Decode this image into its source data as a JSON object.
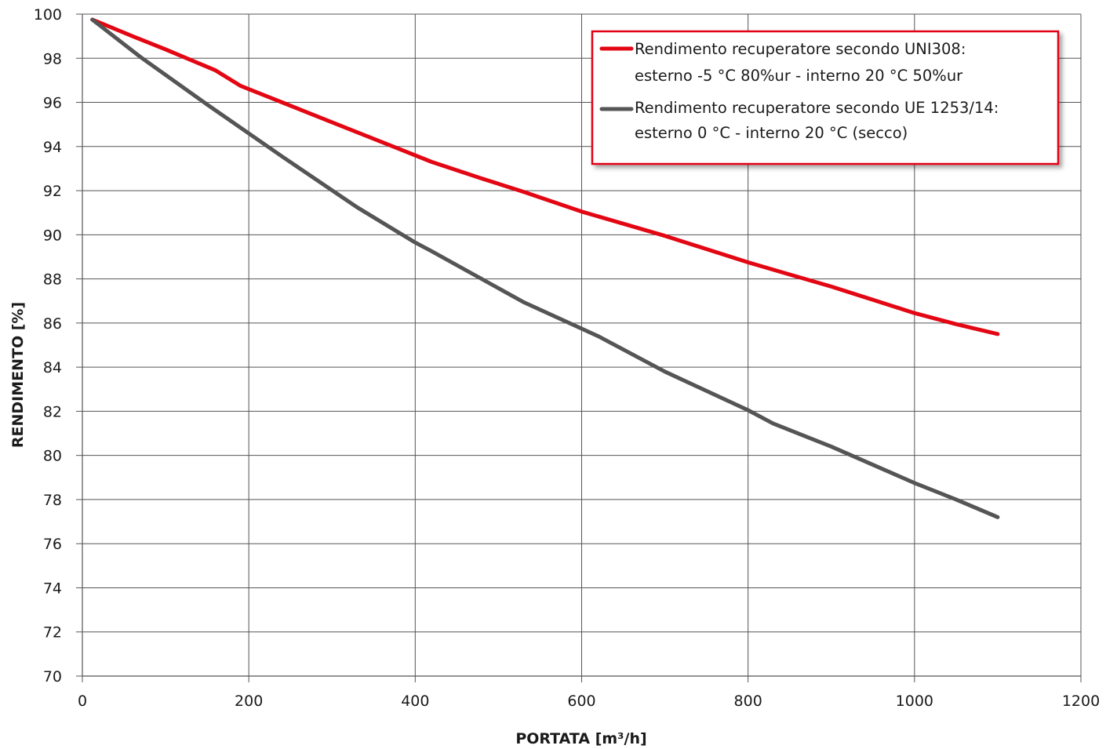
{
  "chart_data": {
    "type": "line",
    "title": "",
    "xlabel": "PORTATA [m³/h]",
    "ylabel": "RENDIMENTO [%]",
    "xlim": [
      0,
      1200
    ],
    "ylim": [
      70,
      100
    ],
    "xticks": [
      0,
      200,
      400,
      600,
      800,
      1000,
      1200
    ],
    "yticks": [
      70,
      72,
      74,
      76,
      78,
      80,
      82,
      84,
      86,
      88,
      90,
      92,
      94,
      96,
      98,
      100
    ],
    "grid": true,
    "legend_position": "top-right",
    "series": [
      {
        "name": "Rendimento recuperatore secondo UNI308:",
        "name_line2": "esterno -5 °C 80%ur - interno 20 °C 50%ur",
        "color": "#e30613",
        "x": [
          12,
          60,
          100,
          160,
          190,
          240,
          300,
          360,
          420,
          480,
          530,
          600,
          700,
          800,
          850,
          900,
          950,
          1000,
          1050,
          1100
        ],
        "y": [
          99.75,
          99.0,
          98.4,
          97.45,
          96.75,
          96.0,
          95.1,
          94.2,
          93.3,
          92.55,
          91.95,
          91.05,
          89.95,
          88.75,
          88.2,
          87.65,
          87.05,
          86.45,
          85.95,
          85.5
        ]
      },
      {
        "name": "Rendimento recuperatore secondo UE 1253/14:",
        "name_line2": "esterno 0 °C - interno 20 °C (secco)",
        "color": "#555555",
        "x": [
          12,
          70,
          150,
          240,
          330,
          400,
          420,
          530,
          620,
          700,
          800,
          830,
          900,
          1000,
          1050,
          1100
        ],
        "y": [
          99.75,
          98.05,
          95.9,
          93.55,
          91.25,
          89.65,
          89.25,
          86.95,
          85.4,
          83.8,
          82.05,
          81.45,
          80.4,
          78.75,
          78.0,
          77.2
        ]
      }
    ]
  }
}
